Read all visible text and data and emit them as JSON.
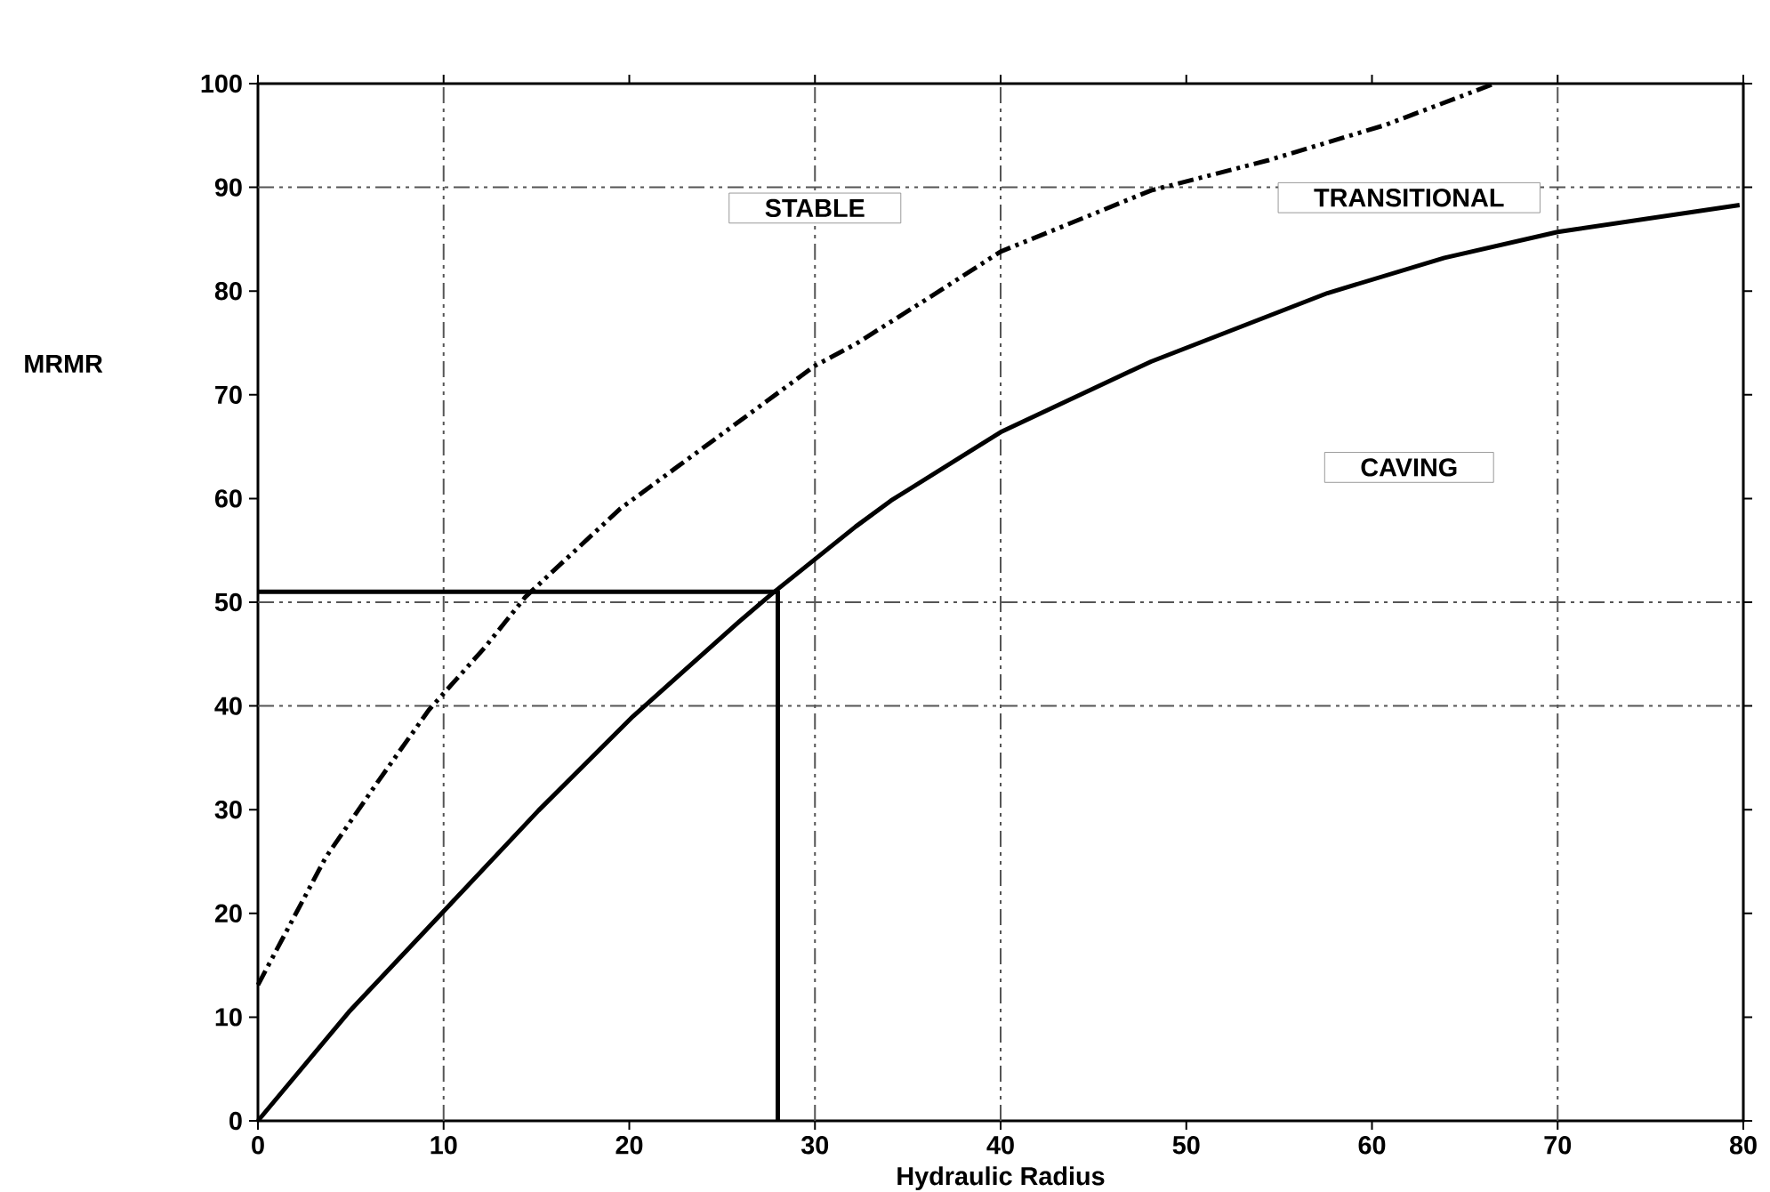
{
  "chart_data": {
    "type": "line",
    "xlabel": "Hydraulic Radius",
    "ylabel": "MRMR",
    "xlim": [
      0,
      80
    ],
    "ylim": [
      0,
      100
    ],
    "xticks": [
      0,
      10,
      20,
      30,
      40,
      50,
      60,
      70,
      80
    ],
    "yticks": [
      0,
      10,
      20,
      30,
      40,
      50,
      60,
      70,
      80,
      90,
      100
    ],
    "grid": false,
    "marker": "none",
    "series": [
      {
        "color": "#000000",
        "line_style": "dashed",
        "x": [
          0,
          3.65,
          6.5,
          9.2,
          12.2,
          14.4,
          19.5,
          24.6,
          30,
          32.2,
          36,
          40,
          48.1,
          54.4,
          60.7,
          66.6
        ],
        "values": [
          13.1,
          25.4,
          32.8,
          39.6,
          45.6,
          50.5,
          59,
          65.7,
          72.8,
          74.9,
          79.2,
          83.8,
          89.7,
          92.6,
          96,
          100
        ]
      },
      {
        "color": "#000000",
        "line_style": "solid",
        "x": [
          0,
          4.9,
          10,
          15.1,
          20.2,
          25.9,
          27.6,
          32.2,
          34.1,
          40,
          48.1,
          57.6,
          63.9,
          70,
          79.8
        ],
        "values": [
          0,
          10.5,
          20.2,
          29.9,
          39,
          48.1,
          50.7,
          57.3,
          59.8,
          66.4,
          73.2,
          79.8,
          83.2,
          85.7,
          88.3
        ]
      },
      {
        "color": "#000000",
        "line_style": "solid",
        "x": [
          0,
          28,
          28
        ],
        "values": [
          51,
          51,
          0
        ]
      }
    ],
    "ref_lines": [
      {
        "axis": "x",
        "value": 10,
        "color": "#555555",
        "line_style": "dashed"
      },
      {
        "axis": "x",
        "value": 30,
        "color": "#555555",
        "line_style": "dashed"
      },
      {
        "axis": "x",
        "value": 40,
        "color": "#555555",
        "line_style": "dashed"
      },
      {
        "axis": "x",
        "value": 70,
        "color": "#555555",
        "line_style": "dashed"
      },
      {
        "axis": "y",
        "value": 40,
        "color": "#555555",
        "line_style": "dashed"
      },
      {
        "axis": "y",
        "value": 50,
        "color": "#555555",
        "line_style": "dashed"
      },
      {
        "axis": "y",
        "value": 90,
        "color": "#555555",
        "line_style": "dashed"
      }
    ],
    "annotations": [
      "STABLE",
      "TRANSITIONAL",
      "CAVING"
    ]
  }
}
